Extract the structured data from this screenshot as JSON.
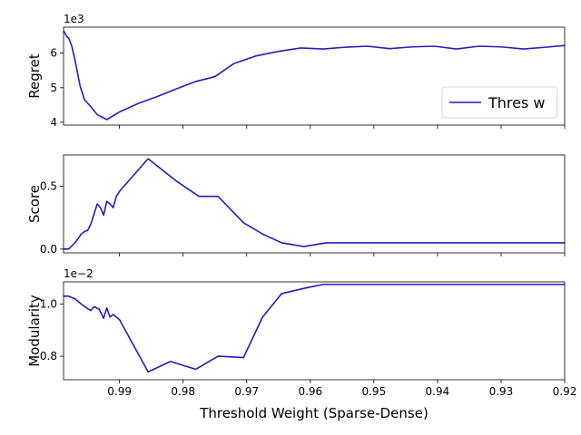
{
  "figure": {
    "xlabel": "Threshold Weight (Sparse-Dense)",
    "xticks": [
      0.99,
      0.98,
      0.97,
      0.96,
      0.95,
      0.94,
      0.93,
      0.92
    ],
    "xlim": [
      0.9988,
      0.92
    ]
  },
  "chart_data": [
    {
      "type": "line",
      "ylabel": "Regret",
      "exponent_label": "1e3",
      "ylim": [
        3.92,
        6.75
      ],
      "yticks": [
        4,
        5,
        6
      ],
      "ytick_labels": [
        "4",
        "5",
        "6"
      ],
      "legend": {
        "entry": "Thres w",
        "location": "lower right"
      },
      "series": [
        {
          "name": "Thres w",
          "color": "#1f1fbf",
          "x": [
            0.9988,
            0.9983,
            0.998,
            0.9975,
            0.997,
            0.9962,
            0.9955,
            0.9945,
            0.9935,
            0.992,
            0.99,
            0.987,
            0.984,
            0.981,
            0.978,
            0.975,
            0.972,
            0.9685,
            0.965,
            0.9615,
            0.958,
            0.9545,
            0.951,
            0.9475,
            0.944,
            0.9405,
            0.937,
            0.9335,
            0.93,
            0.9265,
            0.923,
            0.92
          ],
          "values": [
            6.65,
            6.48,
            6.44,
            6.2,
            5.8,
            5.05,
            4.65,
            4.45,
            4.22,
            4.08,
            4.3,
            4.55,
            4.75,
            4.97,
            5.18,
            5.32,
            5.7,
            5.92,
            6.05,
            6.15,
            6.12,
            6.17,
            6.2,
            6.13,
            6.18,
            6.2,
            6.12,
            6.2,
            6.18,
            6.12,
            6.17,
            6.22
          ]
        }
      ]
    },
    {
      "type": "line",
      "ylabel": "Score",
      "ylim": [
        -0.03,
        0.75
      ],
      "yticks": [
        0.0,
        0.5
      ],
      "ytick_labels": [
        "0.0",
        "0.5"
      ],
      "series": [
        {
          "color": "#1f1fbf",
          "x": [
            0.9988,
            0.998,
            0.997,
            0.996,
            0.9955,
            0.995,
            0.9945,
            0.994,
            0.9935,
            0.993,
            0.9925,
            0.992,
            0.9915,
            0.991,
            0.9905,
            0.99,
            0.9855,
            0.981,
            0.9775,
            0.9745,
            0.9705,
            0.9675,
            0.9645,
            0.961,
            0.9575,
            0.9545,
            0.95,
            0.94,
            0.93,
            0.92
          ],
          "values": [
            0.0,
            0.0,
            0.05,
            0.12,
            0.14,
            0.15,
            0.2,
            0.28,
            0.36,
            0.33,
            0.27,
            0.38,
            0.36,
            0.33,
            0.42,
            0.46,
            0.72,
            0.54,
            0.42,
            0.42,
            0.21,
            0.12,
            0.05,
            0.02,
            0.05,
            0.05,
            0.05,
            0.05,
            0.05,
            0.05
          ]
        }
      ]
    },
    {
      "type": "line",
      "ylabel": "Modularity",
      "exponent_label": "1e−2",
      "ylim": [
        0.71,
        1.085
      ],
      "yticks": [
        0.8,
        1.0
      ],
      "ytick_labels": [
        "0.8",
        "1.0"
      ],
      "series": [
        {
          "color": "#1f1fbf",
          "x": [
            0.9988,
            0.998,
            0.997,
            0.996,
            0.9952,
            0.9945,
            0.994,
            0.9932,
            0.9925,
            0.992,
            0.9915,
            0.991,
            0.99,
            0.9855,
            0.982,
            0.978,
            0.9745,
            0.9705,
            0.9675,
            0.9645,
            0.961,
            0.958,
            0.955,
            0.95,
            0.94,
            0.93,
            0.92
          ],
          "values": [
            1.03,
            1.03,
            1.02,
            1.0,
            0.985,
            0.975,
            0.99,
            0.98,
            0.945,
            0.985,
            0.95,
            0.96,
            0.94,
            0.74,
            0.78,
            0.75,
            0.8,
            0.795,
            0.95,
            1.04,
            1.06,
            1.075,
            1.075,
            1.075,
            1.075,
            1.075,
            1.075
          ]
        }
      ]
    }
  ]
}
